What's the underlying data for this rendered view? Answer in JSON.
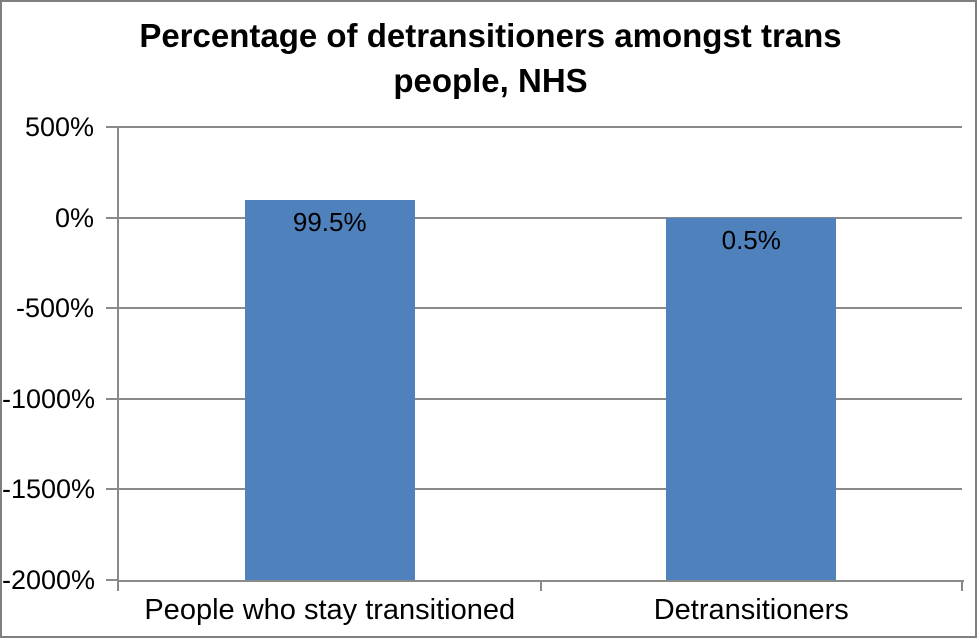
{
  "chart_data": {
    "type": "bar",
    "title": "Percentage of detransitioners amongst trans people, NHS",
    "title_lines": [
      "Percentage of detransitioners amongst trans",
      "people, NHS"
    ],
    "categories": [
      "People who stay transitioned",
      "Detransitioners"
    ],
    "values": [
      99.5,
      0.5
    ],
    "data_labels": [
      "99.5%",
      "0.5%"
    ],
    "ylim": [
      -2000,
      500
    ],
    "y_ticks": [
      {
        "value": 500,
        "label": "500%"
      },
      {
        "value": 0,
        "label": "0%"
      },
      {
        "value": -500,
        "label": "-500%"
      },
      {
        "value": -1000,
        "label": "-1000%"
      },
      {
        "value": -1500,
        "label": "-1500%"
      },
      {
        "value": -2000,
        "label": "-2000%"
      }
    ],
    "xlabel": "",
    "ylabel": "",
    "grid": true,
    "legend": "none",
    "bar_baseline": -2000,
    "colors": {
      "bar_fill": "#4F81BD",
      "gridline": "#8A8A8A",
      "axis": "#8A8A8A",
      "text": "#000000",
      "background": "#FFFFFF",
      "chart_border": "#7F7F7F"
    }
  }
}
